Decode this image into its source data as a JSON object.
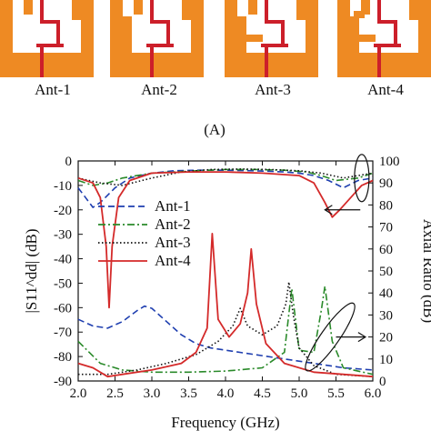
{
  "antennas": [
    "Ant-1",
    "Ant-2",
    "Ant-3",
    "Ant-4"
  ],
  "panel_label": "(A)",
  "colors": {
    "copper": "#ee8a23",
    "feed": "#cc1f2a",
    "ant1": "#1f3fb0",
    "ant2": "#2a8a2a",
    "ant3": "#111111",
    "ant4": "#d42a2a"
  },
  "chart_data": {
    "type": "line",
    "xlabel": "Frequency (GHz)",
    "ylabel_left": "|S11^dd| (dB)",
    "ylabel_right": "Axial Ratio (dB)",
    "xlim": [
      2.0,
      6.0
    ],
    "ylim_left": [
      -90,
      0
    ],
    "ylim_right": [
      0,
      100
    ],
    "xticks": [
      2.0,
      2.5,
      3.0,
      3.5,
      4.0,
      4.5,
      5.0,
      5.5,
      6.0
    ],
    "xtick_labels": [
      "2.0",
      "2.5",
      "3.0",
      "3.5",
      "4.0",
      "4.5",
      "5.0",
      "5.5",
      "6.0"
    ],
    "yticks_left": [
      0,
      -10,
      -20,
      -30,
      -40,
      -50,
      -60,
      -70,
      -80,
      -90
    ],
    "yticks_right": [
      100,
      90,
      80,
      70,
      60,
      50,
      40,
      30,
      20,
      10,
      0
    ],
    "legend_position": "top-left",
    "series": [
      {
        "name": "Ant-1",
        "axis": "left",
        "style": "dashed",
        "x": [
          2.0,
          2.1,
          2.2,
          2.3,
          2.5,
          2.7,
          3.0,
          3.3,
          3.6,
          4.0,
          4.4,
          4.8,
          5.0,
          5.2,
          5.4,
          5.6,
          5.8,
          6.0
        ],
        "y": [
          -11,
          -15,
          -19,
          -17,
          -11,
          -7,
          -5,
          -4,
          -3.8,
          -3.8,
          -4.0,
          -4.5,
          -5,
          -6,
          -8,
          -11,
          -8,
          -7
        ]
      },
      {
        "name": "Ant-1",
        "axis": "right",
        "style": "dashed",
        "x": [
          2.0,
          2.2,
          2.4,
          2.6,
          2.8,
          2.9,
          3.0,
          3.2,
          3.4,
          3.6,
          3.8,
          4.0,
          4.4,
          4.8,
          5.2,
          5.6,
          6.0
        ],
        "y": [
          28,
          25,
          24,
          27,
          32,
          34,
          33,
          27,
          21,
          17,
          15,
          14,
          12,
          10,
          8,
          6,
          5
        ]
      },
      {
        "name": "Ant-2",
        "axis": "left",
        "style": "dashdot",
        "x": [
          2.0,
          2.2,
          2.4,
          2.6,
          2.8,
          3.0,
          3.3,
          3.6,
          4.0,
          4.4,
          4.8,
          5.1,
          5.3,
          5.5,
          5.8,
          6.0
        ],
        "y": [
          -8,
          -10,
          -9,
          -7,
          -6,
          -5,
          -4.5,
          -4,
          -3.5,
          -3.5,
          -3.8,
          -4.5,
          -6,
          -8,
          -7,
          -5
        ]
      },
      {
        "name": "Ant-2",
        "axis": "right",
        "style": "dashdot",
        "x": [
          2.0,
          2.3,
          2.6,
          3.0,
          3.5,
          4.0,
          4.5,
          4.8,
          4.9,
          5.0,
          5.2,
          5.3,
          5.35,
          5.45,
          5.6,
          6.0
        ],
        "y": [
          18,
          8,
          5,
          4,
          4,
          4.5,
          6,
          13,
          42,
          14,
          13,
          32,
          43,
          18,
          6,
          3
        ]
      },
      {
        "name": "Ant-3",
        "axis": "left",
        "style": "dotted",
        "x": [
          2.0,
          2.3,
          2.6,
          3.0,
          3.4,
          3.8,
          4.2,
          4.6,
          5.0,
          5.3,
          5.6,
          5.8,
          6.0
        ],
        "y": [
          -7,
          -9,
          -10,
          -7,
          -4.5,
          -3.5,
          -3.3,
          -3.5,
          -4,
          -5,
          -7,
          -6,
          -5
        ]
      },
      {
        "name": "Ant-3",
        "axis": "right",
        "style": "dotted",
        "x": [
          2.0,
          2.4,
          2.8,
          3.2,
          3.6,
          3.9,
          4.1,
          4.2,
          4.3,
          4.5,
          4.7,
          4.82,
          4.86,
          4.92,
          5.0,
          5.2,
          5.5,
          6.0
        ],
        "y": [
          3,
          3,
          5,
          8,
          12,
          18,
          25,
          33,
          25,
          21,
          25,
          35,
          45,
          30,
          15,
          7,
          3,
          2
        ]
      },
      {
        "name": "Ant-4",
        "axis": "left",
        "style": "solid",
        "x": [
          2.0,
          2.2,
          2.3,
          2.38,
          2.42,
          2.46,
          2.55,
          2.7,
          3.0,
          3.5,
          4.0,
          4.5,
          5.0,
          5.2,
          5.35,
          5.45,
          5.55,
          5.7,
          5.85,
          6.0
        ],
        "y": [
          -7,
          -9,
          -15,
          -35,
          -60,
          -35,
          -15,
          -8,
          -5,
          -4.5,
          -4.5,
          -5,
          -6,
          -9,
          -17,
          -23,
          -20,
          -15,
          -10,
          -8
        ]
      },
      {
        "name": "Ant-4",
        "axis": "right",
        "style": "solid",
        "x": [
          2.0,
          2.2,
          2.4,
          2.6,
          3.0,
          3.4,
          3.6,
          3.75,
          3.82,
          3.9,
          4.05,
          4.2,
          4.3,
          4.35,
          4.42,
          4.55,
          4.8,
          5.2,
          5.6,
          6.0
        ],
        "y": [
          8,
          6,
          2,
          3,
          5,
          8,
          13,
          24,
          67,
          28,
          20,
          26,
          40,
          60,
          35,
          17,
          8,
          4,
          3,
          2
        ]
      }
    ],
    "annotations": [
      {
        "type": "ellipse-arrow",
        "target": "S11 curves",
        "direction": "left"
      },
      {
        "type": "ellipse-arrow",
        "target": "Axial Ratio curves",
        "direction": "right"
      }
    ]
  }
}
